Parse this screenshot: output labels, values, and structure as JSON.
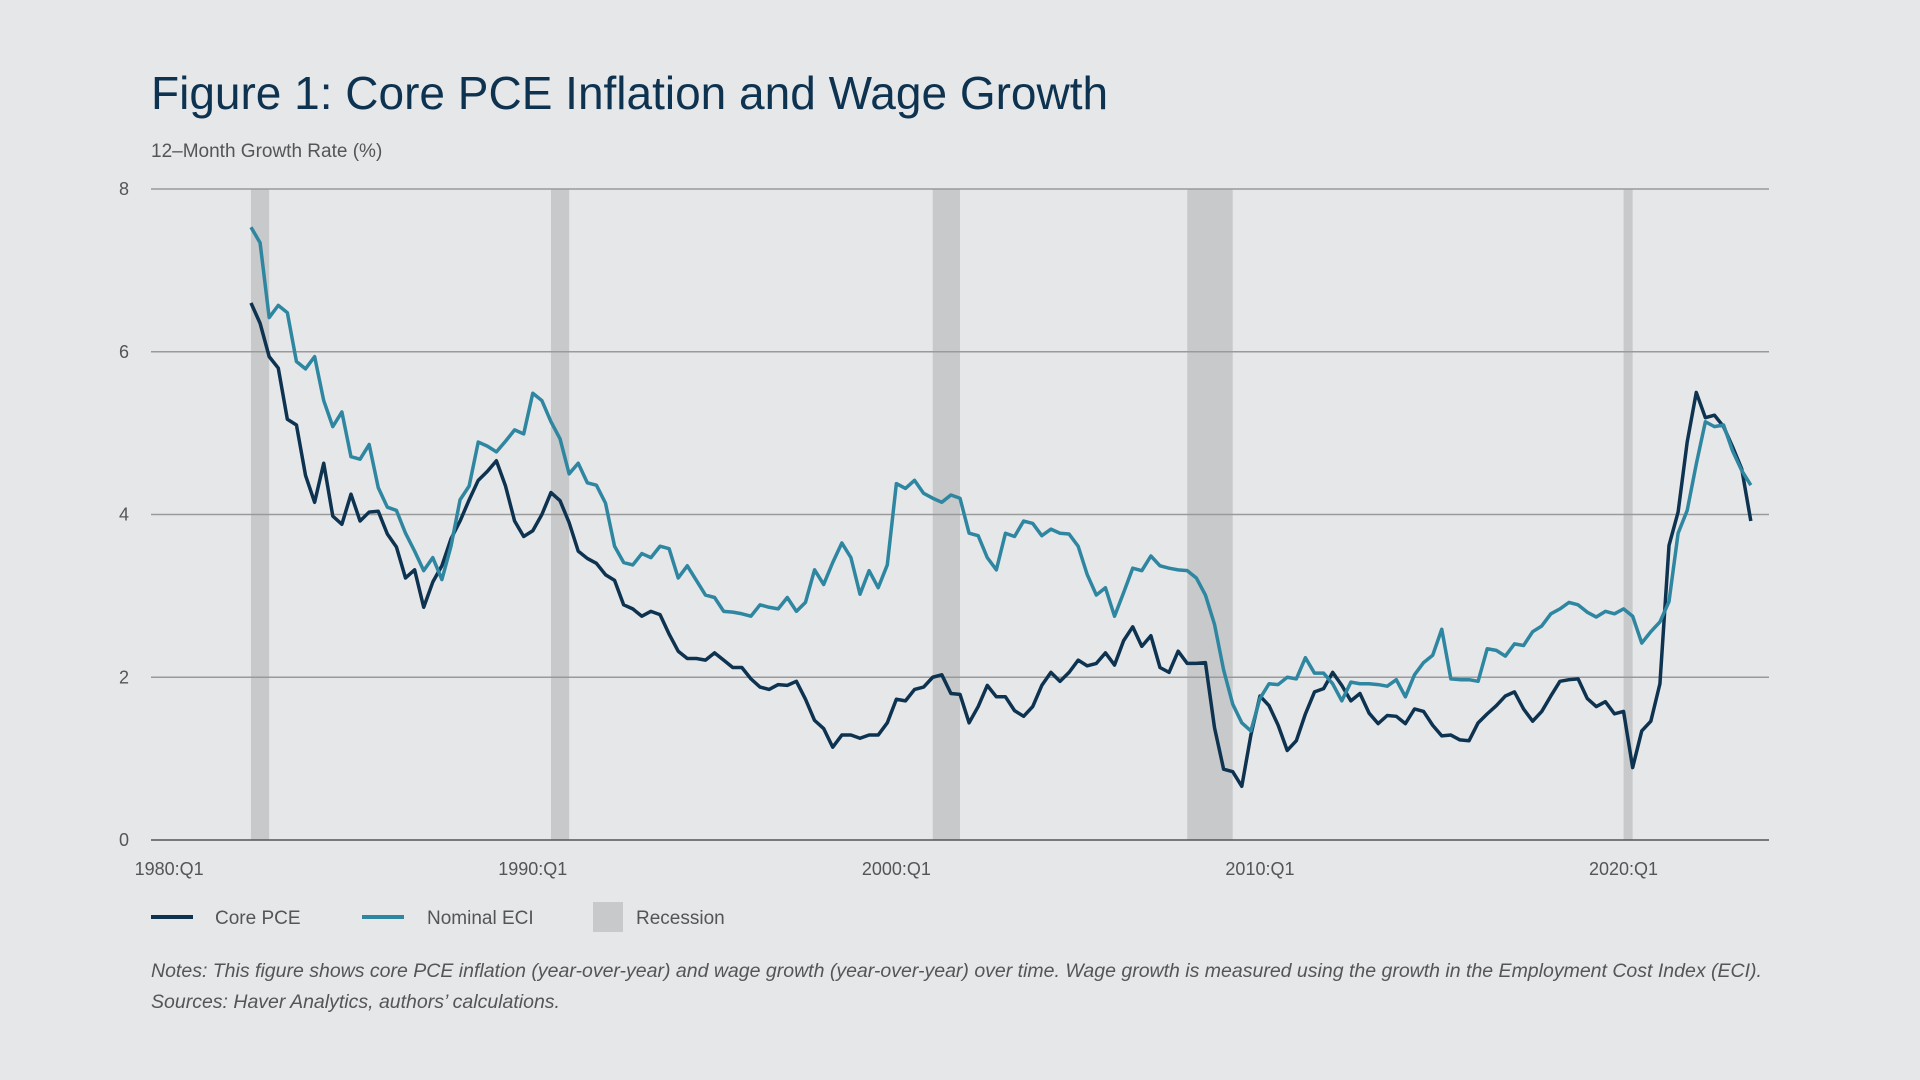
{
  "chart_data": {
    "type": "line",
    "title": "Figure 1: Core PCE Inflation and Wage Growth",
    "ylabel": "12–Month Growth Rate (%)",
    "notes": [
      "Notes: This figure shows core PCE inflation (year-over-year) and wage growth (year-over-year) over time. Wage growth is measured using the growth in the Employment Cost Index (ECI).",
      "Sources: Haver Analytics, authors’ calculations."
    ],
    "x": [
      "1982:Q2",
      "1982:Q3",
      "1982:Q4",
      "1983:Q1",
      "1983:Q2",
      "1983:Q3",
      "1983:Q4",
      "1984:Q1",
      "1984:Q2",
      "1984:Q3",
      "1984:Q4",
      "1985:Q1",
      "1985:Q2",
      "1985:Q3",
      "1985:Q4",
      "1986:Q1",
      "1986:Q2",
      "1986:Q3",
      "1986:Q4",
      "1987:Q1",
      "1987:Q2",
      "1987:Q3",
      "1987:Q4",
      "1988:Q1",
      "1988:Q2",
      "1988:Q3",
      "1988:Q4",
      "1989:Q1",
      "1989:Q2",
      "1989:Q3",
      "1989:Q4",
      "1990:Q1",
      "1990:Q2",
      "1990:Q3",
      "1990:Q4",
      "1991:Q1",
      "1991:Q2",
      "1991:Q3",
      "1991:Q4",
      "1992:Q1",
      "1992:Q2",
      "1992:Q3",
      "1992:Q4",
      "1993:Q1",
      "1993:Q2",
      "1993:Q3",
      "1993:Q4",
      "1994:Q1",
      "1994:Q2",
      "1994:Q3",
      "1994:Q4",
      "1995:Q1",
      "1995:Q2",
      "1995:Q3",
      "1995:Q4",
      "1996:Q1",
      "1996:Q2",
      "1996:Q3",
      "1996:Q4",
      "1997:Q1",
      "1997:Q2",
      "1997:Q3",
      "1997:Q4",
      "1998:Q1",
      "1998:Q2",
      "1998:Q3",
      "1998:Q4",
      "1999:Q1",
      "1999:Q2",
      "1999:Q3",
      "1999:Q4",
      "2000:Q1",
      "2000:Q2",
      "2000:Q3",
      "2000:Q4",
      "2001:Q1",
      "2001:Q2",
      "2001:Q3",
      "2001:Q4",
      "2002:Q1",
      "2002:Q2",
      "2002:Q3",
      "2002:Q4",
      "2003:Q1",
      "2003:Q2",
      "2003:Q3",
      "2003:Q4",
      "2004:Q1",
      "2004:Q2",
      "2004:Q3",
      "2004:Q4",
      "2005:Q1",
      "2005:Q2",
      "2005:Q3",
      "2005:Q4",
      "2006:Q1",
      "2006:Q2",
      "2006:Q3",
      "2006:Q4",
      "2007:Q1",
      "2007:Q2",
      "2007:Q3",
      "2007:Q4",
      "2008:Q1",
      "2008:Q2",
      "2008:Q3",
      "2008:Q4",
      "2009:Q1",
      "2009:Q2",
      "2009:Q3",
      "2009:Q4",
      "2010:Q1",
      "2010:Q2",
      "2010:Q3",
      "2010:Q4",
      "2011:Q1",
      "2011:Q2",
      "2011:Q3",
      "2011:Q4",
      "2012:Q1",
      "2012:Q2",
      "2012:Q3",
      "2012:Q4",
      "2013:Q1",
      "2013:Q2",
      "2013:Q3",
      "2013:Q4",
      "2014:Q1",
      "2014:Q2",
      "2014:Q3",
      "2014:Q4",
      "2015:Q1",
      "2015:Q2",
      "2015:Q3",
      "2015:Q4",
      "2016:Q1",
      "2016:Q2",
      "2016:Q3",
      "2016:Q4",
      "2017:Q1",
      "2017:Q2",
      "2017:Q3",
      "2017:Q4",
      "2018:Q1",
      "2018:Q2",
      "2018:Q3",
      "2018:Q4",
      "2019:Q1",
      "2019:Q2",
      "2019:Q3",
      "2019:Q4",
      "2020:Q1",
      "2020:Q2",
      "2020:Q3",
      "2020:Q4",
      "2021:Q1",
      "2021:Q2",
      "2021:Q3",
      "2021:Q4",
      "2022:Q1",
      "2022:Q2",
      "2022:Q3",
      "2022:Q4",
      "2023:Q1",
      "2023:Q2",
      "2023:Q3"
    ],
    "series": [
      {
        "name": "Core PCE",
        "color": "#0d3350",
        "values": [
          6.6,
          6.35,
          5.94,
          5.8,
          5.17,
          5.1,
          4.48,
          4.15,
          4.63,
          3.98,
          3.88,
          4.25,
          3.92,
          4.03,
          4.04,
          3.76,
          3.6,
          3.22,
          3.32,
          2.86,
          3.17,
          3.37,
          3.7,
          3.92,
          4.18,
          4.42,
          4.53,
          4.66,
          4.35,
          3.92,
          3.73,
          3.8,
          4.0,
          4.27,
          4.17,
          3.9,
          3.55,
          3.46,
          3.4,
          3.26,
          3.19,
          2.89,
          2.84,
          2.75,
          2.81,
          2.77,
          2.53,
          2.32,
          2.23,
          2.23,
          2.21,
          2.3,
          2.21,
          2.12,
          2.12,
          1.98,
          1.88,
          1.85,
          1.91,
          1.9,
          1.95,
          1.73,
          1.47,
          1.37,
          1.14,
          1.29,
          1.29,
          1.25,
          1.29,
          1.29,
          1.44,
          1.73,
          1.71,
          1.85,
          1.88,
          2.0,
          2.03,
          1.8,
          1.79,
          1.44,
          1.64,
          1.9,
          1.76,
          1.76,
          1.59,
          1.52,
          1.64,
          1.9,
          2.06,
          1.95,
          2.06,
          2.21,
          2.14,
          2.17,
          2.3,
          2.15,
          2.45,
          2.62,
          2.38,
          2.51,
          2.12,
          2.06,
          2.32,
          2.17,
          2.17,
          2.18,
          1.38,
          0.87,
          0.84,
          0.66,
          1.29,
          1.77,
          1.65,
          1.41,
          1.1,
          1.22,
          1.55,
          1.82,
          1.86,
          2.06,
          1.9,
          1.71,
          1.8,
          1.56,
          1.43,
          1.53,
          1.52,
          1.43,
          1.61,
          1.58,
          1.41,
          1.28,
          1.29,
          1.23,
          1.22,
          1.44,
          1.55,
          1.65,
          1.77,
          1.82,
          1.61,
          1.46,
          1.58,
          1.77,
          1.95,
          1.97,
          1.98,
          1.74,
          1.64,
          1.7,
          1.55,
          1.58,
          0.89,
          1.34,
          1.46,
          1.92,
          3.62,
          4.03,
          4.89,
          5.5,
          5.19,
          5.22,
          5.08,
          4.83,
          4.56,
          3.92
        ]
      },
      {
        "name": "Nominal ECI",
        "color": "#2e86a0",
        "values": [
          7.53,
          7.34,
          6.42,
          6.57,
          6.48,
          5.88,
          5.79,
          5.94,
          5.4,
          5.08,
          5.26,
          4.71,
          4.68,
          4.86,
          4.33,
          4.09,
          4.05,
          3.77,
          3.55,
          3.31,
          3.47,
          3.2,
          3.61,
          4.18,
          4.35,
          4.89,
          4.84,
          4.77,
          4.9,
          5.04,
          4.99,
          5.49,
          5.4,
          5.14,
          4.93,
          4.5,
          4.63,
          4.39,
          4.36,
          4.14,
          3.61,
          3.41,
          3.38,
          3.52,
          3.47,
          3.61,
          3.58,
          3.22,
          3.37,
          3.19,
          3.01,
          2.98,
          2.81,
          2.8,
          2.78,
          2.75,
          2.89,
          2.86,
          2.84,
          2.98,
          2.81,
          2.92,
          3.32,
          3.14,
          3.41,
          3.65,
          3.47,
          3.02,
          3.31,
          3.1,
          3.38,
          4.38,
          4.32,
          4.42,
          4.26,
          4.2,
          4.15,
          4.24,
          4.2,
          3.77,
          3.74,
          3.47,
          3.32,
          3.77,
          3.73,
          3.92,
          3.89,
          3.74,
          3.82,
          3.77,
          3.76,
          3.61,
          3.26,
          3.01,
          3.1,
          2.75,
          3.04,
          3.34,
          3.31,
          3.49,
          3.37,
          3.34,
          3.32,
          3.31,
          3.22,
          3.01,
          2.65,
          2.09,
          1.67,
          1.44,
          1.34,
          1.74,
          1.92,
          1.91,
          2.0,
          1.98,
          2.24,
          2.05,
          2.05,
          1.92,
          1.71,
          1.94,
          1.92,
          1.92,
          1.91,
          1.89,
          1.97,
          1.76,
          2.03,
          2.18,
          2.27,
          2.59,
          1.98,
          1.97,
          1.97,
          1.95,
          2.35,
          2.33,
          2.26,
          2.41,
          2.39,
          2.56,
          2.63,
          2.78,
          2.84,
          2.92,
          2.89,
          2.8,
          2.74,
          2.81,
          2.78,
          2.84,
          2.75,
          2.42,
          2.56,
          2.68,
          2.93,
          3.77,
          4.05,
          4.62,
          5.14,
          5.08,
          5.1,
          4.78,
          4.54,
          4.36
        ]
      }
    ],
    "recession": {
      "name": "Recession",
      "color": "#c8c9cb",
      "periods": [
        [
          "1982:Q2",
          "1982:Q4"
        ],
        [
          "1990:Q3",
          "1991:Q1"
        ],
        [
          "2001:Q1",
          "2001:Q4"
        ],
        [
          "2008:Q1",
          "2009:Q2"
        ],
        [
          "2020:Q1",
          "2020:Q2"
        ]
      ]
    },
    "xlim": [
      "1979:Q3",
      "2024:Q1"
    ],
    "xticks": [
      "1980:Q1",
      "1990:Q1",
      "2000:Q1",
      "2010:Q1",
      "2020:Q1"
    ],
    "ylim": [
      0,
      8
    ],
    "yticks": [
      0,
      2,
      4,
      6,
      8
    ],
    "grid": true
  }
}
